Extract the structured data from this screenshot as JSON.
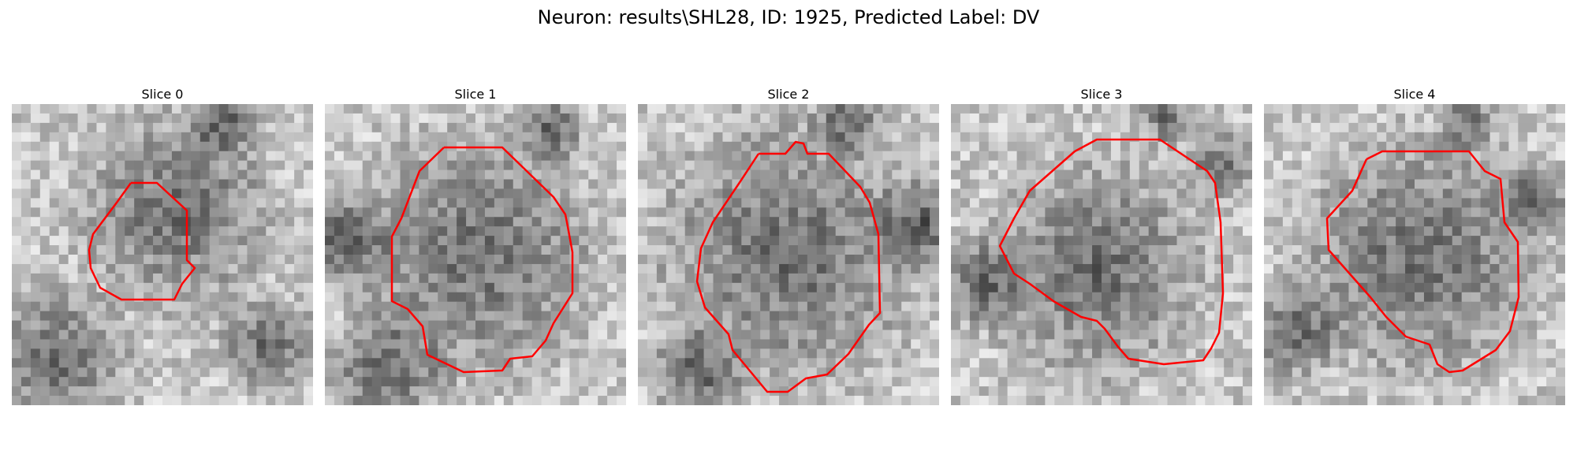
{
  "figure": {
    "title": "Neuron: results\\SHL28, ID: 1925, Predicted Label: DV",
    "contour_color": "#ff0000"
  },
  "slices": [
    {
      "title": "Slice 0"
    },
    {
      "title": "Slice 1"
    },
    {
      "title": "Slice 2"
    },
    {
      "title": "Slice 3"
    },
    {
      "title": "Slice 4"
    }
  ]
}
